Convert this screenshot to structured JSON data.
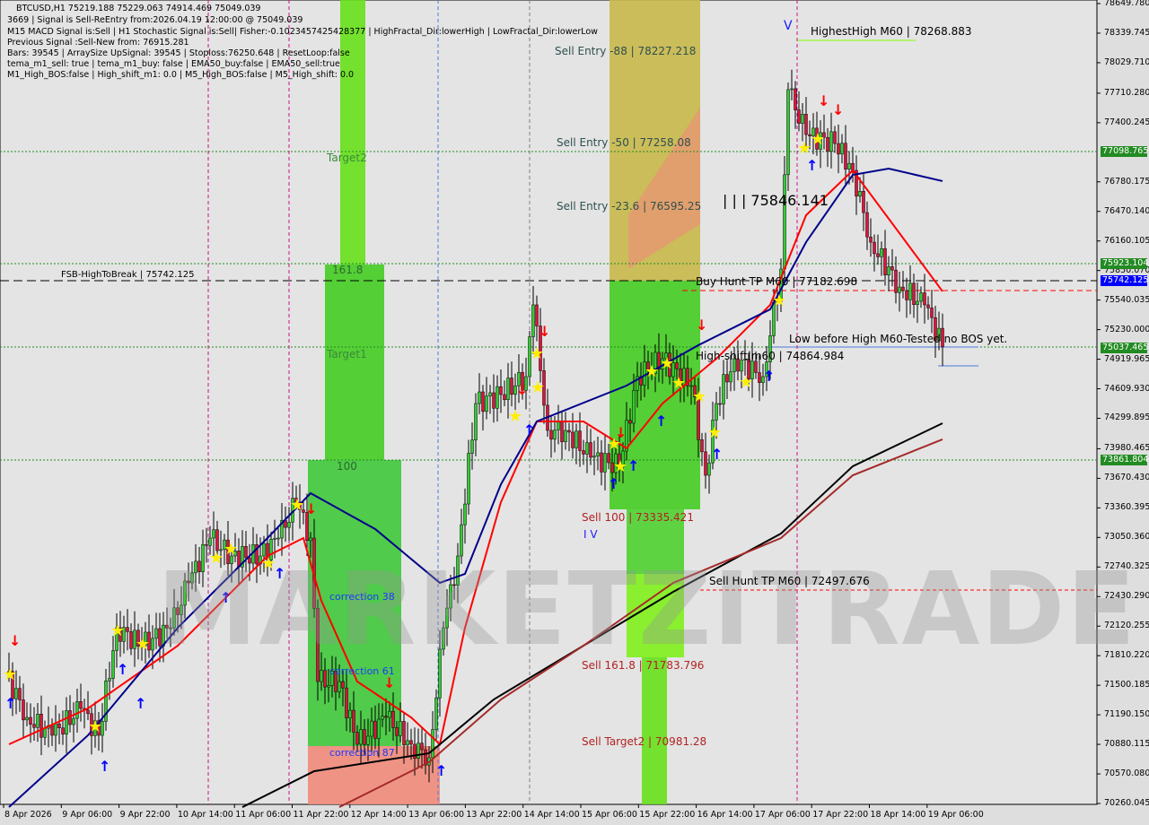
{
  "header": {
    "symbol_line": "BTCUSD,H1  75219.188 75229.063 74914.469 75049.039",
    "lines": [
      "3669 | Signal is Sell-ReEntry from:2026.04.19 12:00:00 @ 75049.039",
      "M15 MACD Signal is:Sell | H1 Stochastic Signal is:Sell| Fisher:-0.1023457425428377 | HighFractal_Dir:lowerHigh | LowFractal_Dir:lowerLow",
      "Previous Signal :Sell-New from: 76915.281",
      "Bars: 39545 | ArraySize UpSignal: 39545 | Stoploss:76250.648 | ResetLoop:false",
      "tema_m1_sell: true | tema_m1_buy: false | EMA50_buy:false | EMA50_sell:true",
      "M1_High_BOS:false | High_shift_m1: 0.0 | M5_High_BOS:false | M5_High_shift: 0.0"
    ]
  },
  "watermark": "MARKETZITRADE",
  "annotations": {
    "target2": "Target2",
    "fib_161": "161.8",
    "target1": "Target1",
    "fib_100": "100",
    "correction38": "correction 38",
    "correction61": "correction 61",
    "correction87": "correction 87",
    "fsb": "FSB-HighToBreak | 75742.125",
    "sell_entry_88": "Sell Entry -88 | 78227.218",
    "sell_entry_50": "Sell Entry -50 | 77258.08",
    "sell_entry_236": "Sell Entry -23.6 | 76595.25",
    "sell_100": "Sell 100 | 73335.421",
    "sell_1618": "Sell 161.8 | 71783.796",
    "sell_target2": "Sell Target2 | 70981.28",
    "sell_hunt": "Sell Hunt TP M60 | 72497.676",
    "buy_hunt": "Buy Hunt TP M60 | 77182.698",
    "high_shift": "High-shift|m60 | 74864.984",
    "low_before_high": "Low before High  M60-Tested no BOS yet.",
    "highest_high": "HighestHigh   M60 | 78268.883",
    "triple_bar": "| | | 75846.141",
    "wave_iv": "I V",
    "wave_v": "V"
  },
  "chart_data": {
    "type": "candlestick",
    "symbol": "BTCUSD",
    "timeframe": "H1",
    "ylim": [
      70260.045,
      78649.78
    ],
    "y_ticks": [
      "78649.780",
      "78339.745",
      "78029.710",
      "77710.280",
      "77400.245",
      "76780.175",
      "76470.140",
      "76160.105",
      "75850.070",
      "75540.035",
      "75230.000",
      "74919.965",
      "74609.930",
      "74299.895",
      "73980.465",
      "73670.430",
      "73360.395",
      "73050.360",
      "72740.325",
      "72430.290",
      "72120.255",
      "71810.220",
      "71500.185",
      "71190.150",
      "70880.115",
      "70570.080",
      "70260.045"
    ],
    "x_ticks": [
      "8 Apr 2026",
      "9 Apr 06:00",
      "9 Apr 22:00",
      "10 Apr 14:00",
      "11 Apr 06:00",
      "11 Apr 22:00",
      "12 Apr 14:00",
      "13 Apr 06:00",
      "13 Apr 22:00",
      "14 Apr 14:00",
      "15 Apr 06:00",
      "15 Apr 22:00",
      "16 Apr 14:00",
      "17 Apr 06:00",
      "17 Apr 22:00",
      "18 Apr 14:00",
      "19 Apr 06:00"
    ],
    "price_badges": [
      {
        "value": "77098.765",
        "color": "#228b22"
      },
      {
        "value": "75923.104",
        "color": "#228b22"
      },
      {
        "value": "75742.125",
        "color": "#0000ff"
      },
      {
        "value": "75037.465",
        "color": "#228b22"
      },
      {
        "value": "73861.804",
        "color": "#228b22"
      }
    ],
    "close_approx": [
      [
        "2026-04-08 15:00",
        71633
      ],
      [
        "2026-04-08 21:00",
        71163
      ],
      [
        "2026-04-09 04:00",
        70975
      ],
      [
        "2026-04-09 12:00",
        71257
      ],
      [
        "2026-04-09 17:00",
        70975
      ],
      [
        "2026-04-09 22:00",
        72103
      ],
      [
        "2026-04-10 05:00",
        71915
      ],
      [
        "2026-04-10 13:00",
        72103
      ],
      [
        "2026-04-10 18:00",
        72574
      ],
      [
        "2026-04-11 00:00",
        73044
      ],
      [
        "2026-04-11 06:00",
        72856
      ],
      [
        "2026-04-11 14:00",
        72856
      ],
      [
        "2026-04-11 19:00",
        73044
      ],
      [
        "2026-04-12 00:00",
        73420
      ],
      [
        "2026-04-12 04:00",
        73044
      ],
      [
        "2026-04-12 06:00",
        71539
      ],
      [
        "2026-04-12 12:00",
        71539
      ],
      [
        "2026-04-12 17:00",
        70881
      ],
      [
        "2026-04-13 01:00",
        71163
      ],
      [
        "2026-04-13 08:00",
        70881
      ],
      [
        "2026-04-13 13:00",
        70740
      ],
      [
        "2026-04-13 17:00",
        72103
      ],
      [
        "2026-04-13 21:00",
        72856
      ],
      [
        "2026-04-14 02:00",
        74455
      ],
      [
        "2026-04-14 09:00",
        74549
      ],
      [
        "2026-04-14 16:00",
        74737
      ],
      [
        "2026-04-14 18:00",
        75490
      ],
      [
        "2026-04-14 22:00",
        74173
      ],
      [
        "2026-04-15 03:00",
        74173
      ],
      [
        "2026-04-15 10:00",
        73891
      ],
      [
        "2026-04-15 18:00",
        73797
      ],
      [
        "2026-04-15 23:00",
        74737
      ],
      [
        "2026-04-16 06:00",
        74925
      ],
      [
        "2026-04-16 14:00",
        74643
      ],
      [
        "2026-04-16 18:00",
        73702
      ],
      [
        "2026-04-16 21:00",
        74455
      ],
      [
        "2026-04-17 02:00",
        74925
      ],
      [
        "2026-04-17 10:00",
        74737
      ],
      [
        "2026-04-17 15:00",
        75866
      ],
      [
        "2026-04-17 17:00",
        77747
      ],
      [
        "2026-04-17 22:00",
        77276
      ],
      [
        "2026-04-18 06:00",
        77182
      ],
      [
        "2026-04-18 11:00",
        76900
      ],
      [
        "2026-04-18 16:00",
        76147
      ],
      [
        "2026-04-19 00:00",
        75677
      ],
      [
        "2026-04-19 07:00",
        75490
      ],
      [
        "2026-04-19 12:00",
        75049
      ]
    ],
    "ma_series": [
      {
        "color": "#ff0000",
        "points": [
          [
            "2026-04-08 16:00",
            70881
          ],
          [
            "2026-04-09 14:00",
            71257
          ],
          [
            "2026-04-10 15:00",
            71915
          ],
          [
            "2026-04-11 16:00",
            72856
          ],
          [
            "2026-04-12 02:00",
            73044
          ],
          [
            "2026-04-12 07:00",
            72386
          ],
          [
            "2026-04-12 17:00",
            71539
          ],
          [
            "2026-04-13 08:00",
            71163
          ],
          [
            "2026-04-13 16:00",
            70881
          ],
          [
            "2026-04-13 23:00",
            72103
          ],
          [
            "2026-04-14 09:00",
            73420
          ],
          [
            "2026-04-14 19:00",
            74267
          ],
          [
            "2026-04-15 08:00",
            74267
          ],
          [
            "2026-04-15 20:00",
            73985
          ],
          [
            "2026-04-16 06:00",
            74455
          ],
          [
            "2026-04-16 21:00",
            74925
          ],
          [
            "2026-04-17 12:00",
            75490
          ],
          [
            "2026-04-17 22:00",
            76430
          ],
          [
            "2026-04-18 11:00",
            76900
          ],
          [
            "2026-04-19 00:00",
            76242
          ],
          [
            "2026-04-19 12:00",
            75631
          ]
        ]
      },
      {
        "color": "#00008b",
        "points": [
          [
            "2026-04-08 16:00",
            70222
          ],
          [
            "2026-04-09 14:00",
            70975
          ],
          [
            "2026-04-10 15:00",
            72103
          ],
          [
            "2026-04-11 16:00",
            73044
          ],
          [
            "2026-04-12 04:00",
            73514
          ],
          [
            "2026-04-12 22:00",
            73138
          ],
          [
            "2026-04-13 16:00",
            72574
          ],
          [
            "2026-04-13 23:00",
            72668
          ],
          [
            "2026-04-14 09:00",
            73607
          ],
          [
            "2026-04-14 19:00",
            74267
          ],
          [
            "2026-04-15 20:00",
            74643
          ],
          [
            "2026-04-16 16:00",
            75067
          ],
          [
            "2026-04-17 12:00",
            75443
          ],
          [
            "2026-04-17 22:00",
            76148
          ],
          [
            "2026-04-18 11:00",
            76853
          ],
          [
            "2026-04-18 21:00",
            76919
          ],
          [
            "2026-04-19 12:00",
            76788
          ]
        ]
      },
      {
        "color": "#000000",
        "points": [
          [
            "2026-04-11 09:00",
            70222
          ],
          [
            "2026-04-12 05:00",
            70599
          ],
          [
            "2026-04-13 13:00",
            70787
          ],
          [
            "2026-04-14 07:00",
            71351
          ],
          [
            "2026-04-15 08:00",
            71915
          ],
          [
            "2026-04-16 09:00",
            72480
          ],
          [
            "2026-04-17 15:00",
            73091
          ],
          [
            "2026-04-18 11:00",
            73797
          ],
          [
            "2026-04-19 12:00",
            74248
          ]
        ]
      },
      {
        "color": "#a52a2a",
        "points": [
          [
            "2026-04-12 12:00",
            70222
          ],
          [
            "2026-04-13 13:00",
            70693
          ],
          [
            "2026-04-14 09:00",
            71351
          ],
          [
            "2026-04-15 08:00",
            71915
          ],
          [
            "2026-04-16 09:00",
            72574
          ],
          [
            "2026-04-17 15:00",
            73044
          ],
          [
            "2026-04-18 11:00",
            73702
          ],
          [
            "2026-04-19 12:00",
            74079
          ]
        ]
      }
    ],
    "colors": {
      "bull": "#32cd32",
      "bear": "#dc143c",
      "level_green": "#228b22",
      "level_red": "#ff0000"
    }
  }
}
